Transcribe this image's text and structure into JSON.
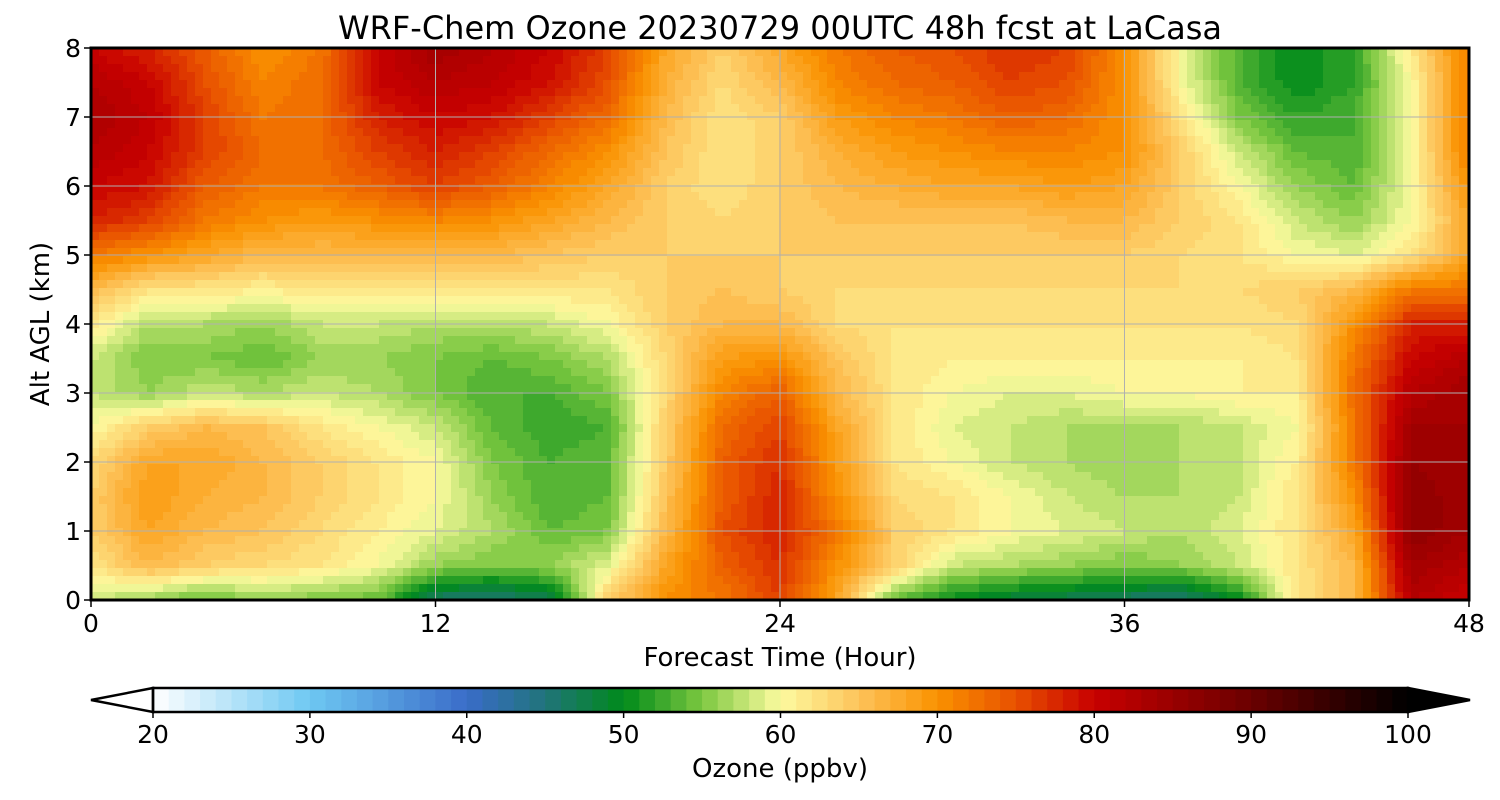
{
  "chart_data": {
    "type": "heatmap",
    "title": "WRF-Chem Ozone  20230729 00UTC 48h fcst at LaCasa",
    "xlabel": "Forecast Time (Hour)",
    "ylabel": "Alt AGL (km)",
    "xlim": [
      0,
      48
    ],
    "ylim": [
      0,
      8
    ],
    "x_ticks": [
      "0",
      "12",
      "24",
      "36",
      "48"
    ],
    "y_ticks": [
      "0",
      "1",
      "2",
      "3",
      "4",
      "5",
      "6",
      "7",
      "8"
    ],
    "grid": true,
    "x": [
      0,
      2,
      4,
      6,
      8,
      10,
      12,
      14,
      16,
      18,
      20,
      22,
      24,
      26,
      28,
      30,
      32,
      34,
      36,
      38,
      40,
      42,
      44,
      46,
      48
    ],
    "y": [
      0,
      0.5,
      1,
      1.5,
      2,
      2.5,
      3,
      3.5,
      4,
      4.5,
      5,
      5.5,
      6,
      6.5,
      7,
      7.5,
      8
    ],
    "z": [
      [
        58,
        56,
        54,
        56,
        55,
        54,
        46,
        45,
        47,
        64,
        70,
        72,
        76,
        68,
        54,
        50,
        48,
        47,
        46,
        45,
        50,
        62,
        66,
        82,
        80
      ],
      [
        62,
        66,
        64,
        63,
        62,
        60,
        56,
        55,
        56,
        59,
        68,
        74,
        77,
        70,
        64,
        58,
        57,
        56,
        55,
        56,
        58,
        62,
        66,
        84,
        82
      ],
      [
        64,
        68,
        66,
        65,
        63,
        61,
        59,
        57,
        54,
        55,
        66,
        75,
        78,
        72,
        64,
        62,
        60,
        59,
        58,
        57,
        59,
        62,
        68,
        86,
        84
      ],
      [
        64,
        69,
        67,
        66,
        64,
        62,
        60,
        56,
        53,
        54,
        65,
        74,
        78,
        70,
        63,
        62,
        60,
        58,
        57,
        57,
        58,
        62,
        70,
        86,
        84
      ],
      [
        63,
        68,
        68,
        66,
        64,
        62,
        60,
        55,
        53,
        54,
        64,
        74,
        77,
        69,
        62,
        60,
        58,
        57,
        56,
        57,
        58,
        61,
        72,
        85,
        84
      ],
      [
        60,
        64,
        66,
        65,
        62,
        60,
        58,
        54,
        52,
        53,
        64,
        73,
        76,
        68,
        62,
        59,
        58,
        57,
        57,
        57,
        58,
        60,
        72,
        84,
        84
      ],
      [
        58,
        56,
        58,
        57,
        58,
        57,
        55,
        53,
        53,
        55,
        63,
        71,
        74,
        66,
        62,
        60,
        59,
        59,
        60,
        60,
        61,
        61,
        73,
        82,
        84
      ],
      [
        58,
        55,
        55,
        54,
        56,
        56,
        55,
        54,
        55,
        57,
        63,
        69,
        70,
        65,
        62,
        61,
        61,
        61,
        61,
        61,
        61,
        62,
        72,
        80,
        82
      ],
      [
        62,
        57,
        57,
        56,
        58,
        58,
        57,
        57,
        58,
        60,
        64,
        66,
        66,
        63,
        62,
        62,
        62,
        62,
        62,
        62,
        62,
        63,
        70,
        78,
        78
      ],
      [
        66,
        62,
        62,
        61,
        62,
        62,
        62,
        62,
        62,
        62,
        64,
        65,
        64,
        63,
        63,
        63,
        63,
        63,
        63,
        63,
        63,
        64,
        66,
        72,
        72
      ],
      [
        72,
        70,
        68,
        66,
        66,
        66,
        66,
        66,
        65,
        64,
        64,
        64,
        64,
        64,
        64,
        64,
        64,
        64,
        64,
        63,
        62,
        60,
        59,
        62,
        68
      ],
      [
        78,
        76,
        72,
        70,
        69,
        70,
        71,
        70,
        68,
        66,
        64,
        63,
        64,
        65,
        65,
        65,
        65,
        66,
        66,
        64,
        62,
        58,
        56,
        60,
        68
      ],
      [
        80,
        79,
        74,
        72,
        72,
        74,
        76,
        74,
        71,
        68,
        64,
        62,
        64,
        66,
        67,
        68,
        68,
        69,
        68,
        64,
        60,
        56,
        54,
        60,
        70
      ],
      [
        82,
        80,
        76,
        73,
        73,
        76,
        78,
        76,
        73,
        70,
        65,
        62,
        64,
        67,
        69,
        70,
        71,
        71,
        70,
        64,
        58,
        54,
        53,
        60,
        72
      ],
      [
        83,
        81,
        76,
        72,
        73,
        78,
        80,
        79,
        76,
        73,
        66,
        62,
        64,
        69,
        71,
        72,
        74,
        73,
        70,
        62,
        55,
        52,
        53,
        60,
        72
      ],
      [
        82,
        80,
        75,
        71,
        73,
        80,
        82,
        81,
        79,
        75,
        67,
        63,
        66,
        71,
        73,
        74,
        76,
        75,
        70,
        60,
        53,
        50,
        52,
        60,
        72
      ],
      [
        80,
        78,
        74,
        70,
        72,
        80,
        84,
        82,
        80,
        76,
        68,
        64,
        68,
        72,
        74,
        75,
        77,
        76,
        70,
        60,
        53,
        50,
        52,
        62,
        72
      ]
    ],
    "colorbar": {
      "label": "Ozone  (ppbv)",
      "min": 20,
      "max": 100,
      "ticks": [
        "20",
        "30",
        "40",
        "50",
        "60",
        "70",
        "80",
        "90",
        "100"
      ],
      "extend": "both",
      "stops": [
        {
          "value": 20,
          "color": "#ffffff"
        },
        {
          "value": 30,
          "color": "#6ec8f2"
        },
        {
          "value": 40,
          "color": "#3a6cc9"
        },
        {
          "value": 45,
          "color": "#20747a"
        },
        {
          "value": 50,
          "color": "#008a1a"
        },
        {
          "value": 55,
          "color": "#7cc840"
        },
        {
          "value": 60,
          "color": "#fdfba0"
        },
        {
          "value": 65,
          "color": "#fdc35a"
        },
        {
          "value": 70,
          "color": "#fa9200"
        },
        {
          "value": 75,
          "color": "#e85000"
        },
        {
          "value": 80,
          "color": "#c80000"
        },
        {
          "value": 90,
          "color": "#6a0000"
        },
        {
          "value": 100,
          "color": "#000000"
        }
      ]
    }
  }
}
